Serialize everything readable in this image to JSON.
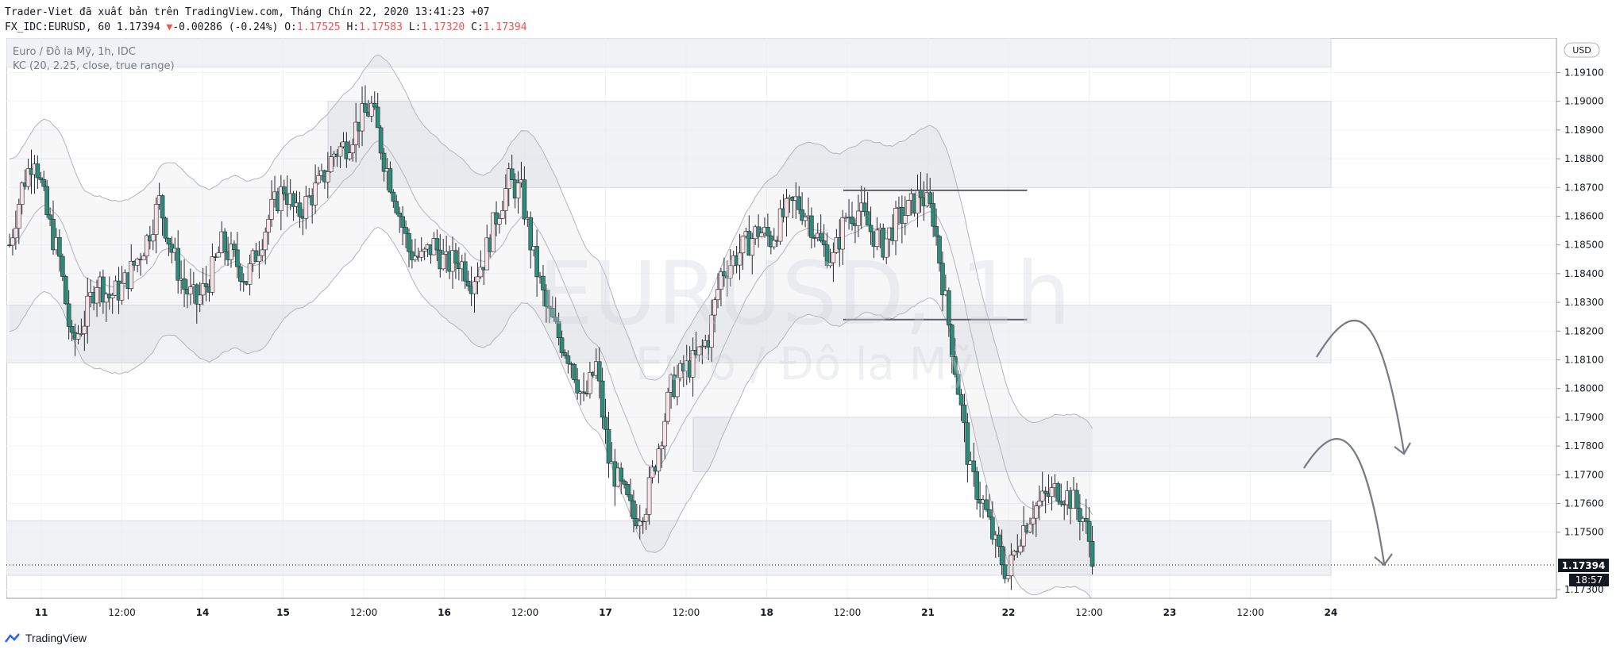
{
  "header": {
    "published_by": "Trader-Viet đã xuất bản trên TradingView.com, Tháng Chín 22, 2020 13:41:23 +07",
    "symbol": "FX_IDC:EURUSD, 60",
    "last": "1.17394",
    "change": "-0.00286 (-0.24%)",
    "open_label": "O:",
    "open": "1.17525",
    "high_label": "H:",
    "high": "1.17583",
    "low_label": "L:",
    "low": "1.17320",
    "close_label": "C:",
    "close": "1.17394"
  },
  "legend": {
    "title": "Euro / Đô la Mỹ, 1h, IDC",
    "indicator": "KC (20, 2.25, close, true range)"
  },
  "watermark": {
    "symbol": "EURUSD, 1h",
    "name": "Euro / Đô la Mỹ"
  },
  "currency_button": "USD",
  "price_tag": "1.17394",
  "countdown": "18:57",
  "brand": "TradingView",
  "colors": {
    "up": "#26a69a",
    "down": "#ef5350",
    "candle_up_body": "#f8e3e6",
    "candle_down_body": "#2e8b7a",
    "zone": "#e9ebef",
    "band": "#b2b5be"
  },
  "chart_data": {
    "type": "candlestick",
    "ylim": [
      1.1727,
      1.1922
    ],
    "y_ticks": [
      "1.19100",
      "1.19000",
      "1.18900",
      "1.18800",
      "1.18700",
      "1.18600",
      "1.18500",
      "1.18400",
      "1.18300",
      "1.18200",
      "1.18100",
      "1.18000",
      "1.17900",
      "1.17800",
      "1.17700",
      "1.17600",
      "1.17500",
      "1.17300"
    ],
    "x_ticks": [
      "11",
      "12:00",
      "14",
      "15",
      "12:00",
      "16",
      "12:00",
      "17",
      "12:00",
      "18",
      "12:00",
      "21",
      "22",
      "12:00",
      "23",
      "12:00",
      "24"
    ],
    "last_price": 1.17394,
    "zones": [
      {
        "from": "start",
        "to": "24",
        "y_low": 1.1912,
        "y_high": 1.1925
      },
      {
        "from": "15 (early)",
        "to": "24",
        "y_low": 1.187,
        "y_high": 1.19
      },
      {
        "from": "start",
        "to": "24",
        "y_low": 1.1809,
        "y_high": 1.1829
      },
      {
        "from": "17",
        "to": "24",
        "y_low": 1.1771,
        "y_high": 1.179
      },
      {
        "from": "start",
        "to": "24",
        "y_low": 1.1735,
        "y_high": 1.1754
      }
    ],
    "resistance_line": 1.1869,
    "support_line": 1.1824,
    "close_path": [
      1.185,
      1.187,
      1.1882,
      1.186,
      1.1845,
      1.1815,
      1.1824,
      1.1838,
      1.1832,
      1.1835,
      1.1843,
      1.1852,
      1.1865,
      1.1848,
      1.1835,
      1.183,
      1.1838,
      1.185,
      1.1845,
      1.1838,
      1.185,
      1.1862,
      1.187,
      1.186,
      1.1866,
      1.1872,
      1.1882,
      1.1885,
      1.1893,
      1.1898,
      1.188,
      1.1865,
      1.1848,
      1.1845,
      1.185,
      1.1843,
      1.1845,
      1.1838,
      1.1845,
      1.186,
      1.1872,
      1.1868,
      1.1845,
      1.1828,
      1.1818,
      1.181,
      1.1795,
      1.1808,
      1.1775,
      1.1765,
      1.1755,
      1.176,
      1.178,
      1.18,
      1.1806,
      1.181,
      1.1818,
      1.184,
      1.1845,
      1.185,
      1.1855,
      1.1852,
      1.186,
      1.1865,
      1.186,
      1.185,
      1.1845,
      1.186,
      1.1862,
      1.1855,
      1.185,
      1.1858,
      1.1862,
      1.1868,
      1.186,
      1.183,
      1.18,
      1.177,
      1.176,
      1.1745,
      1.1735,
      1.175,
      1.1758,
      1.1762,
      1.1765,
      1.1762,
      1.1755,
      1.1739
    ]
  }
}
